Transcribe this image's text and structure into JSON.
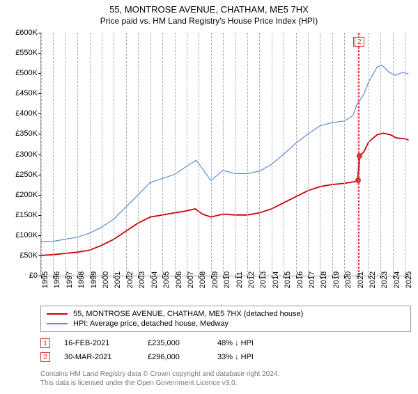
{
  "title": "55, MONTROSE AVENUE, CHATHAM, ME5 7HX",
  "subtitle": "Price paid vs. HM Land Registry's House Price Index (HPI)",
  "chart": {
    "type": "line",
    "x_range": [
      1995,
      2025.5
    ],
    "y_range": [
      0,
      600000
    ],
    "y_ticks": [
      0,
      50000,
      100000,
      150000,
      200000,
      250000,
      300000,
      350000,
      400000,
      450000,
      500000,
      550000,
      600000
    ],
    "y_tick_labels": [
      "£0",
      "£50K",
      "£100K",
      "£150K",
      "£200K",
      "£250K",
      "£300K",
      "£350K",
      "£400K",
      "£450K",
      "£500K",
      "£550K",
      "£600K"
    ],
    "x_ticks": [
      1995,
      1996,
      1997,
      1998,
      1999,
      2000,
      2001,
      2002,
      2003,
      2004,
      2005,
      2006,
      2007,
      2008,
      2009,
      2010,
      2011,
      2012,
      2013,
      2014,
      2015,
      2016,
      2017,
      2018,
      2019,
      2020,
      2021,
      2022,
      2023,
      2024,
      2025
    ],
    "background_color": "#ffffff",
    "axis_color": "#000000",
    "series": [
      {
        "name": "55, MONTROSE AVENUE, CHATHAM, ME5 7HX (detached house)",
        "color": "#cc0000",
        "width": 1.8,
        "data": [
          [
            1995,
            50000
          ],
          [
            1996,
            52000
          ],
          [
            1997,
            55000
          ],
          [
            1998,
            58000
          ],
          [
            1999,
            63000
          ],
          [
            2000,
            75000
          ],
          [
            2001,
            90000
          ],
          [
            2002,
            110000
          ],
          [
            2003,
            130000
          ],
          [
            2004,
            145000
          ],
          [
            2005,
            150000
          ],
          [
            2006,
            155000
          ],
          [
            2007,
            160000
          ],
          [
            2007.7,
            165000
          ],
          [
            2008.3,
            152000
          ],
          [
            2009,
            145000
          ],
          [
            2010,
            152000
          ],
          [
            2011,
            150000
          ],
          [
            2012,
            150000
          ],
          [
            2013,
            155000
          ],
          [
            2014,
            165000
          ],
          [
            2015,
            180000
          ],
          [
            2016,
            195000
          ],
          [
            2017,
            210000
          ],
          [
            2018,
            220000
          ],
          [
            2019,
            225000
          ],
          [
            2020,
            228000
          ],
          [
            2020.8,
            232000
          ],
          [
            2021.12,
            235000
          ],
          [
            2021.24,
            296000
          ],
          [
            2021.6,
            305000
          ],
          [
            2022,
            330000
          ],
          [
            2022.7,
            348000
          ],
          [
            2023.2,
            352000
          ],
          [
            2023.8,
            348000
          ],
          [
            2024.3,
            340000
          ],
          [
            2025,
            338000
          ],
          [
            2025.3,
            335000
          ]
        ]
      },
      {
        "name": "HPI: Average price, detached house, Medway",
        "color": "#5b8dd6",
        "width": 1.2,
        "data": [
          [
            1995,
            85000
          ],
          [
            1996,
            85000
          ],
          [
            1997,
            90000
          ],
          [
            1998,
            95000
          ],
          [
            1999,
            105000
          ],
          [
            2000,
            120000
          ],
          [
            2001,
            140000
          ],
          [
            2002,
            170000
          ],
          [
            2003,
            200000
          ],
          [
            2004,
            230000
          ],
          [
            2005,
            240000
          ],
          [
            2006,
            250000
          ],
          [
            2007,
            270000
          ],
          [
            2007.8,
            285000
          ],
          [
            2008.4,
            260000
          ],
          [
            2009,
            235000
          ],
          [
            2009.6,
            250000
          ],
          [
            2010,
            260000
          ],
          [
            2011,
            252000
          ],
          [
            2012,
            252000
          ],
          [
            2013,
            258000
          ],
          [
            2014,
            275000
          ],
          [
            2015,
            300000
          ],
          [
            2016,
            327000
          ],
          [
            2017,
            350000
          ],
          [
            2018,
            370000
          ],
          [
            2019,
            378000
          ],
          [
            2020,
            382000
          ],
          [
            2020.7,
            395000
          ],
          [
            2021,
            420000
          ],
          [
            2021.6,
            448000
          ],
          [
            2022,
            478000
          ],
          [
            2022.7,
            515000
          ],
          [
            2023.1,
            520000
          ],
          [
            2023.7,
            502000
          ],
          [
            2024.2,
            495000
          ],
          [
            2024.8,
            502000
          ],
          [
            2025.3,
            498000
          ]
        ]
      }
    ],
    "vertical_markers": [
      {
        "x": 2021.12,
        "label": "1"
      },
      {
        "x": 2021.24,
        "label": "2"
      }
    ],
    "sale_points": [
      {
        "x": 2021.12,
        "y": 235000
      },
      {
        "x": 2021.24,
        "y": 296000
      }
    ]
  },
  "legend": {
    "items": [
      {
        "color": "#cc0000",
        "label": "55, MONTROSE AVENUE, CHATHAM, ME5 7HX (detached house)"
      },
      {
        "color": "#5b8dd6",
        "label": "HPI: Average price, detached house, Medway"
      }
    ]
  },
  "sales": [
    {
      "marker": "1",
      "date": "16-FEB-2021",
      "price": "£235,000",
      "delta": "48% ↓ HPI"
    },
    {
      "marker": "2",
      "date": "30-MAR-2021",
      "price": "£296,000",
      "delta": "33% ↓ HPI"
    }
  ],
  "footer_line1": "Contains HM Land Registry data © Crown copyright and database right 2024.",
  "footer_line2": "This data is licensed under the Open Government Licence v3.0."
}
